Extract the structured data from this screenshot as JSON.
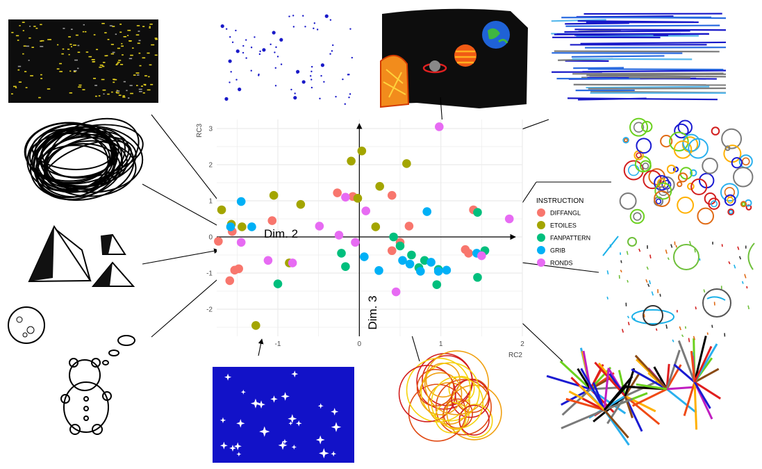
{
  "chart_data": {
    "type": "scatter",
    "title": "",
    "xlabel": "RC2",
    "ylabel": "RC3",
    "overlay_labels": {
      "x_axis_name": "Dim. 2",
      "y_axis_name": "Dim. 3"
    },
    "xlim": [
      -1.75,
      2.0
    ],
    "ylim": [
      -2.75,
      3.25
    ],
    "x_ticks": [
      "-1",
      "0",
      "1",
      "2"
    ],
    "y_ticks": [
      "-2",
      "-1",
      "0",
      "1",
      "2",
      "3"
    ],
    "grid": true,
    "legend": {
      "title": "INSTRUCTION",
      "placement": "right"
    },
    "series": [
      {
        "name": "DIFFANGL",
        "color": "#F8766D",
        "points": [
          [
            -1.73,
            -0.12
          ],
          [
            -1.56,
            0.15
          ],
          [
            -1.48,
            -0.88
          ],
          [
            -1.53,
            -0.92
          ],
          [
            -1.59,
            -1.21
          ],
          [
            -1.07,
            0.45
          ],
          [
            -0.27,
            1.22
          ],
          [
            -0.08,
            1.12
          ],
          [
            0.4,
            1.15
          ],
          [
            0.61,
            0.3
          ],
          [
            0.4,
            -0.38
          ],
          [
            1.3,
            -0.35
          ],
          [
            1.34,
            -0.45
          ],
          [
            1.4,
            0.75
          ],
          [
            0.5,
            -0.15
          ]
        ]
      },
      {
        "name": "ETOILES",
        "color": "#A3A500",
        "points": [
          [
            -1.69,
            0.75
          ],
          [
            -1.57,
            0.35
          ],
          [
            -1.44,
            0.28
          ],
          [
            -1.05,
            1.15
          ],
          [
            -0.72,
            0.9
          ],
          [
            -0.86,
            -0.72
          ],
          [
            -0.1,
            2.1
          ],
          [
            0.03,
            2.38
          ],
          [
            0.58,
            2.03
          ],
          [
            0.25,
            1.4
          ],
          [
            -0.02,
            1.07
          ],
          [
            0.2,
            0.28
          ],
          [
            -1.27,
            -2.45
          ]
        ]
      },
      {
        "name": "FANPATTERN",
        "color": "#00BF7D",
        "points": [
          [
            -1.0,
            -1.3
          ],
          [
            -0.22,
            -0.45
          ],
          [
            -0.17,
            -0.82
          ],
          [
            0.42,
            0.0
          ],
          [
            0.5,
            -0.25
          ],
          [
            0.64,
            -0.5
          ],
          [
            0.8,
            -0.65
          ],
          [
            0.73,
            -0.85
          ],
          [
            0.97,
            -0.9
          ],
          [
            0.95,
            -1.32
          ],
          [
            1.45,
            0.68
          ],
          [
            1.45,
            -1.12
          ],
          [
            1.54,
            -0.38
          ]
        ]
      },
      {
        "name": "GRIB",
        "color": "#00B0F6",
        "points": [
          [
            -1.58,
            0.28
          ],
          [
            -1.45,
            0.98
          ],
          [
            -1.32,
            0.28
          ],
          [
            0.06,
            -0.55
          ],
          [
            0.24,
            -0.93
          ],
          [
            0.53,
            -0.65
          ],
          [
            0.62,
            -0.75
          ],
          [
            0.75,
            -0.95
          ],
          [
            0.88,
            -0.7
          ],
          [
            0.97,
            -0.95
          ],
          [
            1.07,
            -0.92
          ],
          [
            1.44,
            -0.45
          ],
          [
            0.83,
            0.7
          ]
        ]
      },
      {
        "name": "RONDS",
        "color": "#E76BF3",
        "points": [
          [
            -1.45,
            -0.15
          ],
          [
            -1.12,
            -0.65
          ],
          [
            -0.82,
            -0.72
          ],
          [
            -0.49,
            0.3
          ],
          [
            -0.17,
            1.1
          ],
          [
            -0.25,
            0.05
          ],
          [
            -0.05,
            -0.15
          ],
          [
            0.08,
            0.72
          ],
          [
            0.45,
            -1.52
          ],
          [
            0.98,
            3.05
          ],
          [
            1.5,
            -0.52
          ],
          [
            1.84,
            0.5
          ]
        ]
      }
    ]
  }
}
